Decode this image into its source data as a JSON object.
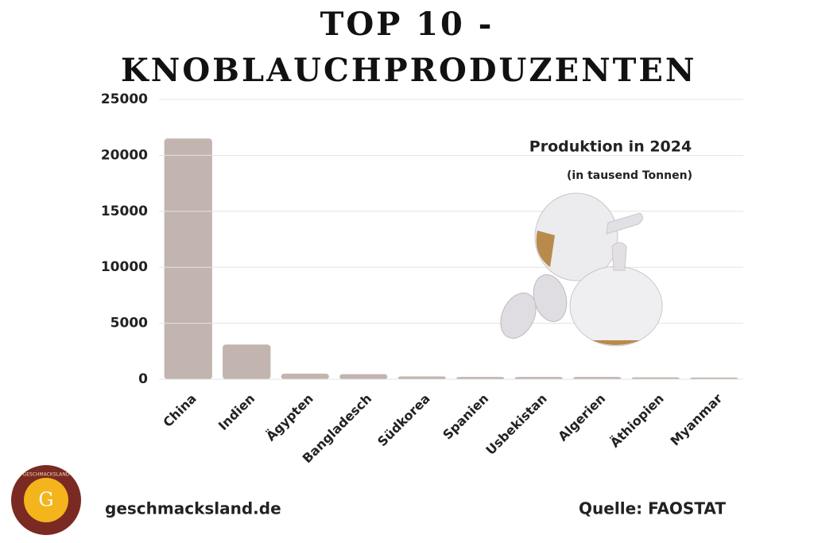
{
  "chart_data": {
    "type": "bar",
    "title": "TOP 10 - KNOBLAUCHPRODUZENTEN",
    "annotations": [
      "Produktion in 2024",
      "(in tausend Tonnen)"
    ],
    "categories": [
      "China",
      "Indien",
      "Ägypten",
      "Bangladesch",
      "Südkorea",
      "Spanien",
      "Usbekistan",
      "Algerien",
      "Äthiopien",
      "Myanmar"
    ],
    "values": [
      21500,
      3100,
      500,
      450,
      250,
      200,
      200,
      200,
      170,
      150
    ],
    "color": "#c2b4ae",
    "ylim": [
      0,
      25000
    ],
    "yticks": [
      0,
      5000,
      10000,
      15000,
      20000,
      25000
    ],
    "grid": true
  },
  "footer": {
    "website": "geschmacksland.de",
    "source": "Quelle: FAOSTAT"
  },
  "logo": {
    "name": "GESCHMACKSLAND",
    "letter": "G"
  }
}
